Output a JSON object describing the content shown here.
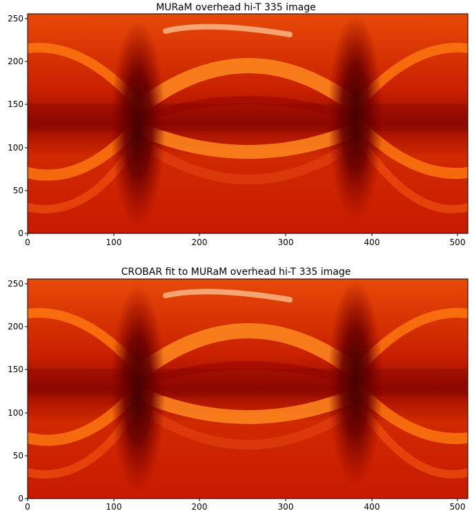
{
  "panels": [
    {
      "title": "MURaM overhead hi-T 335 image",
      "x_ticks": [
        "0",
        "100",
        "200",
        "300",
        "400",
        "500"
      ],
      "y_ticks": [
        "0",
        "50",
        "100",
        "150",
        "200",
        "250"
      ],
      "x_range": [
        0,
        512
      ],
      "y_range": [
        0,
        256
      ],
      "colormap": "gist_heat"
    },
    {
      "title": "CROBAR fit to MURaM overhead hi-T 335 image",
      "x_ticks": [
        "0",
        "100",
        "200",
        "300",
        "400",
        "500"
      ],
      "y_ticks": [
        "0",
        "50",
        "100",
        "150",
        "200",
        "250"
      ],
      "x_range": [
        0,
        512
      ],
      "y_range": [
        0,
        256
      ],
      "colormap": "gist_heat"
    }
  ],
  "colors": {
    "dark": "#5a0000",
    "mid": "#c81400",
    "bright": "#ff7a10",
    "highlight": "#ffe6c8",
    "frame": "#000000"
  }
}
